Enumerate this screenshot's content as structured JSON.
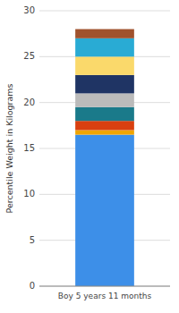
{
  "chart_data": {
    "type": "bar",
    "stacked": true,
    "categories": [
      "Boy 5 years 11 months"
    ],
    "series": [
      {
        "color": "#3D8FE8",
        "values": [
          16.5
        ]
      },
      {
        "color": "#F0A500",
        "values": [
          0.5
        ]
      },
      {
        "color": "#D94010",
        "values": [
          1.0
        ]
      },
      {
        "color": "#1A7A8A",
        "values": [
          1.5
        ]
      },
      {
        "color": "#BBBBBB",
        "values": [
          1.5
        ]
      },
      {
        "color": "#1F3464",
        "values": [
          2.0
        ]
      },
      {
        "color": "#FAD96B",
        "values": [
          2.0
        ]
      },
      {
        "color": "#29ABD4",
        "values": [
          2.0
        ]
      },
      {
        "color": "#A0522D",
        "values": [
          1.0
        ]
      }
    ],
    "y_label": "Percentile Weight in Kilograms",
    "ylim": [
      0,
      30
    ],
    "yticks": [
      0,
      5,
      10,
      15,
      20,
      25,
      30
    ],
    "grid": true
  }
}
